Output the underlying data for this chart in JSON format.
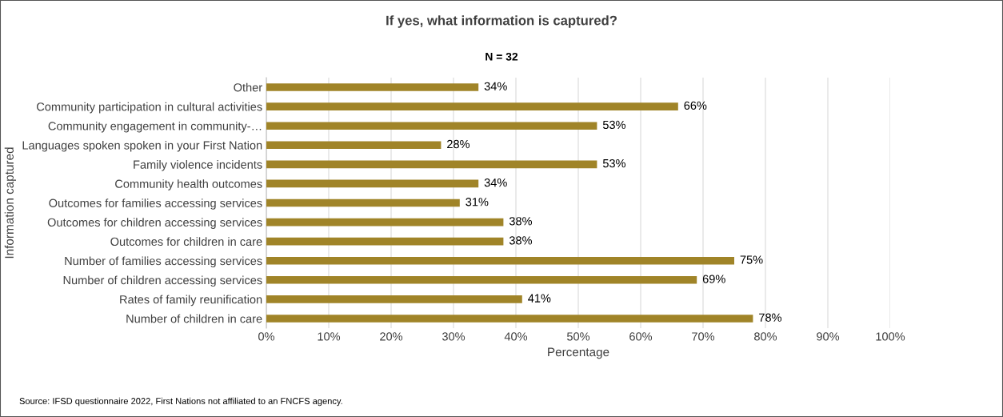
{
  "chart_data": {
    "type": "bar",
    "orientation": "horizontal",
    "title": "If yes, what information is captured?",
    "subtitle": "N = 32",
    "xlabel": "Percentage",
    "ylabel": "Information captured",
    "categories": [
      "Other",
      "Community participation in cultural activities",
      "Community engagement in community-…",
      "Languages spoken spoken in your First Nation",
      "Family violence incidents",
      "Community health outcomes",
      "Outcomes for families accessing services",
      "Outcomes for children accessing services",
      "Outcomes for children in care",
      "Number of families accessing services",
      "Number of children accessing services",
      "Rates of family reunification",
      "Number of children in care"
    ],
    "values": [
      34,
      66,
      53,
      28,
      53,
      34,
      31,
      38,
      38,
      75,
      69,
      41,
      78
    ],
    "value_labels": [
      "34%",
      "66%",
      "53%",
      "28%",
      "53%",
      "34%",
      "31%",
      "38%",
      "38%",
      "75%",
      "69%",
      "41%",
      "78%"
    ],
    "color": "#a08428",
    "xlim": [
      0,
      100
    ],
    "xticks": [
      {
        "value": 0,
        "label": "0%"
      },
      {
        "value": 10,
        "label": "10%"
      },
      {
        "value": 20,
        "label": "20%"
      },
      {
        "value": 30,
        "label": "30%"
      },
      {
        "value": 40,
        "label": "40%"
      },
      {
        "value": 50,
        "label": "50%"
      },
      {
        "value": 60,
        "label": "60%"
      },
      {
        "value": 70,
        "label": "70%"
      },
      {
        "value": 80,
        "label": "80%"
      },
      {
        "value": 90,
        "label": "90%"
      },
      {
        "value": 100,
        "label": "100%"
      }
    ],
    "grid": "x",
    "legend": false,
    "annotations": [
      "Source: IFSD questionnaire 2022, First Nations not affiliated to an FNCFS agency."
    ]
  }
}
